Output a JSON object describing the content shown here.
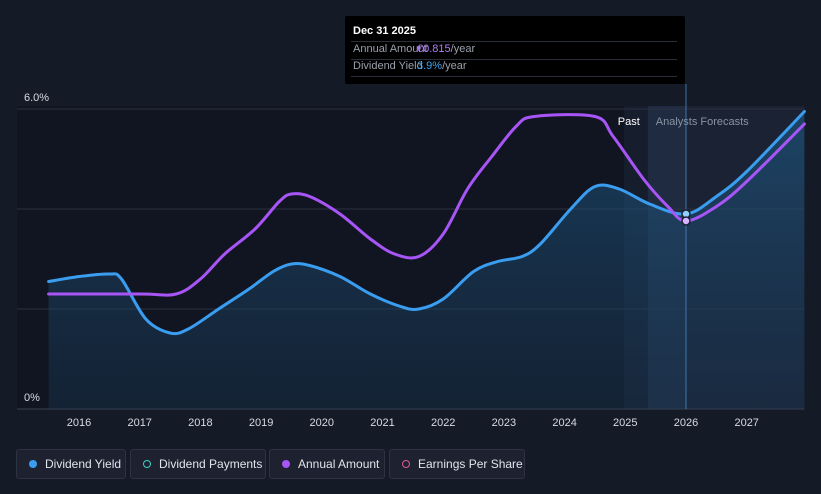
{
  "tooltip": {
    "date": "Dec 31 2025",
    "rows": [
      {
        "label": "Annual Amount",
        "value": "€0.815",
        "unit": "/year",
        "color": "#b07af7"
      },
      {
        "label": "Dividend Yield",
        "value": "3.9%",
        "unit": "/year",
        "color": "#3ba3f2"
      }
    ]
  },
  "period_labels": {
    "past": "Past",
    "forecast": "Analysts Forecasts"
  },
  "legend": [
    {
      "label": "Dividend Yield",
      "color": "#3a9df0",
      "filled": true
    },
    {
      "label": "Dividend Payments",
      "color": "#3fd0c4",
      "filled": false
    },
    {
      "label": "Annual Amount",
      "color": "#a855f7",
      "filled": true
    },
    {
      "label": "Earnings Per Share",
      "color": "#e05a9a",
      "filled": false
    }
  ],
  "chart_data": {
    "type": "line",
    "x_ticks": [
      "2016",
      "2017",
      "2018",
      "2019",
      "2020",
      "2021",
      "2022",
      "2023",
      "2024",
      "2025",
      "2026",
      "2027"
    ],
    "y_ticks": [
      "0%",
      "6.0%"
    ],
    "ylim": [
      0,
      6.0
    ],
    "xlim": [
      2015.5,
      2027.95
    ],
    "past_end": 2025.37,
    "hover_x": 2026.0,
    "series": [
      {
        "name": "Dividend Yield",
        "color": "#3a9df0",
        "points": [
          [
            2015.5,
            2.55
          ],
          [
            2016.0,
            2.65
          ],
          [
            2016.5,
            2.7
          ],
          [
            2016.7,
            2.6
          ],
          [
            2017.1,
            1.8
          ],
          [
            2017.5,
            1.52
          ],
          [
            2017.8,
            1.6
          ],
          [
            2018.3,
            2.0
          ],
          [
            2018.8,
            2.4
          ],
          [
            2019.2,
            2.75
          ],
          [
            2019.5,
            2.9
          ],
          [
            2019.8,
            2.87
          ],
          [
            2020.3,
            2.65
          ],
          [
            2020.8,
            2.3
          ],
          [
            2021.3,
            2.05
          ],
          [
            2021.6,
            2.0
          ],
          [
            2022.0,
            2.2
          ],
          [
            2022.5,
            2.75
          ],
          [
            2022.9,
            2.95
          ],
          [
            2023.3,
            3.05
          ],
          [
            2023.6,
            3.3
          ],
          [
            2024.1,
            4.0
          ],
          [
            2024.5,
            4.45
          ],
          [
            2024.9,
            4.4
          ],
          [
            2025.4,
            4.1
          ],
          [
            2026.0,
            3.9
          ],
          [
            2026.5,
            4.25
          ],
          [
            2027.0,
            4.75
          ],
          [
            2027.95,
            5.95
          ]
        ],
        "area": true
      },
      {
        "name": "Annual Amount",
        "color": "#a855f7",
        "points": [
          [
            2015.5,
            2.3
          ],
          [
            2017.0,
            2.3
          ],
          [
            2017.6,
            2.3
          ],
          [
            2018.0,
            2.6
          ],
          [
            2018.4,
            3.1
          ],
          [
            2018.9,
            3.6
          ],
          [
            2019.3,
            4.15
          ],
          [
            2019.5,
            4.3
          ],
          [
            2019.8,
            4.25
          ],
          [
            2020.3,
            3.9
          ],
          [
            2020.8,
            3.4
          ],
          [
            2021.2,
            3.1
          ],
          [
            2021.6,
            3.05
          ],
          [
            2022.0,
            3.5
          ],
          [
            2022.4,
            4.4
          ],
          [
            2022.8,
            5.05
          ],
          [
            2023.2,
            5.65
          ],
          [
            2023.5,
            5.85
          ],
          [
            2024.5,
            5.85
          ],
          [
            2024.8,
            5.45
          ],
          [
            2025.3,
            4.6
          ],
          [
            2025.7,
            4.05
          ],
          [
            2026.0,
            3.76
          ],
          [
            2026.5,
            4.05
          ],
          [
            2027.0,
            4.55
          ],
          [
            2027.95,
            5.7
          ]
        ],
        "area": false
      }
    ]
  }
}
